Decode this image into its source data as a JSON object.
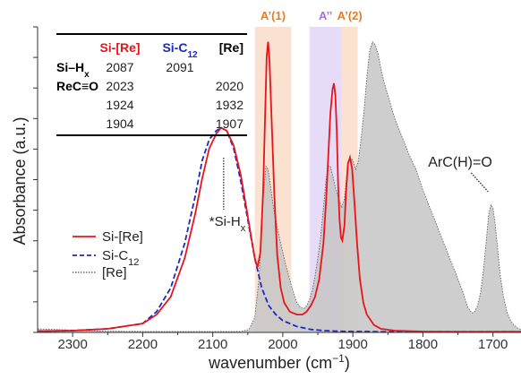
{
  "chart_data": {
    "type": "line",
    "xlabel": "wavenumber (cm",
    "xlabel_sup": "−1",
    "xlabel_close": ")",
    "ylabel": "Absorbance (a.u.)",
    "xlim": [
      2350,
      1660
    ],
    "ylim": [
      0,
      1
    ],
    "x_ticks": [
      2300,
      2200,
      2100,
      2000,
      1900,
      1800,
      1700
    ],
    "y_ticks_count": 11,
    "x_reversed": true,
    "bands": [
      {
        "label": "A’(1)",
        "from": 2040,
        "to": 1988,
        "color": "#F8D7C0"
      },
      {
        "label": "A’’",
        "from": 1962,
        "to": 1916,
        "color": "#DDD0F5"
      },
      {
        "label": "A’(2)",
        "from": 1916,
        "to": 1893,
        "color": "#F8D7C0"
      }
    ],
    "band_label_color_A1": "#E97A22",
    "band_label_color_A2": "#A66EE8",
    "annotations": [
      {
        "text": "ArC(H)=O",
        "x": 1703
      },
      {
        "text": "*Si-H",
        "sub": "x",
        "x": 2087
      }
    ],
    "series": [
      {
        "name": "Si-[Re]",
        "color": "#E8141C",
        "style": "solid",
        "x": [
          2350,
          2300,
          2250,
          2200,
          2180,
          2160,
          2140,
          2125,
          2115,
          2105,
          2095,
          2088,
          2080,
          2070,
          2060,
          2052,
          2045,
          2040,
          2036,
          2032,
          2028,
          2025,
          2023,
          2021,
          2019,
          2016,
          2012,
          2008,
          2003,
          1998,
          1990,
          1980,
          1972,
          1966,
          1960,
          1954,
          1948,
          1942,
          1938,
          1935,
          1932,
          1929,
          1927,
          1925,
          1923,
          1921,
          1919,
          1917,
          1915,
          1912,
          1910,
          1907,
          1904,
          1901,
          1898,
          1894,
          1890,
          1885,
          1880,
          1870,
          1860,
          1840,
          1800,
          1750,
          1700,
          1660
        ],
        "y": [
          0.004,
          0.006,
          0.012,
          0.03,
          0.06,
          0.12,
          0.25,
          0.4,
          0.52,
          0.62,
          0.67,
          0.69,
          0.68,
          0.63,
          0.53,
          0.42,
          0.32,
          0.25,
          0.22,
          0.27,
          0.48,
          0.75,
          0.93,
          0.98,
          0.92,
          0.72,
          0.46,
          0.26,
          0.15,
          0.1,
          0.07,
          0.06,
          0.06,
          0.07,
          0.09,
          0.12,
          0.18,
          0.3,
          0.45,
          0.6,
          0.74,
          0.82,
          0.84,
          0.8,
          0.68,
          0.5,
          0.38,
          0.32,
          0.31,
          0.36,
          0.46,
          0.57,
          0.59,
          0.55,
          0.45,
          0.3,
          0.18,
          0.1,
          0.06,
          0.025,
          0.012,
          0.006,
          0.003,
          0.002,
          0.002,
          0.002
        ]
      },
      {
        "name": "Si-C",
        "sub": "12",
        "color": "#1C28C8",
        "style": "dashed",
        "x": [
          2350,
          2300,
          2250,
          2200,
          2180,
          2160,
          2140,
          2125,
          2115,
          2105,
          2095,
          2088,
          2080,
          2070,
          2060,
          2050,
          2040,
          2030,
          2020,
          2010,
          2000,
          1990,
          1980,
          1970,
          1960,
          1950,
          1940,
          1920,
          1900,
          1880,
          1860,
          1800,
          1660
        ],
        "y": [
          0.004,
          0.006,
          0.012,
          0.03,
          0.07,
          0.15,
          0.3,
          0.46,
          0.58,
          0.65,
          0.68,
          0.69,
          0.68,
          0.62,
          0.51,
          0.38,
          0.25,
          0.15,
          0.09,
          0.06,
          0.04,
          0.03,
          0.02,
          0.015,
          0.01,
          0.008,
          0.006,
          0.004,
          0.003,
          0.003,
          0.002,
          0.002,
          0.002
        ]
      },
      {
        "name": "[Re]",
        "color": "#555555",
        "style": "dotted-filled",
        "fill": "#C5C5C5",
        "x": [
          2350,
          2300,
          2250,
          2200,
          2150,
          2100,
          2060,
          2048,
          2040,
          2034,
          2028,
          2024,
          2021,
          2018,
          2012,
          2004,
          1996,
          1988,
          1980,
          1975,
          1970,
          1966,
          1962,
          1958,
          1954,
          1950,
          1946,
          1942,
          1938,
          1935,
          1932,
          1928,
          1924,
          1920,
          1916,
          1912,
          1908,
          1904,
          1900,
          1896,
          1892,
          1888,
          1884,
          1880,
          1876,
          1872,
          1868,
          1864,
          1860,
          1855,
          1850,
          1845,
          1840,
          1830,
          1820,
          1810,
          1800,
          1790,
          1780,
          1770,
          1760,
          1750,
          1742,
          1736,
          1730,
          1726,
          1722,
          1718,
          1714,
          1710,
          1706,
          1703,
          1700,
          1697,
          1694,
          1690,
          1685,
          1680,
          1675,
          1670,
          1665,
          1660
        ],
        "y": [
          0.012,
          0.008,
          0.004,
          0.003,
          0.003,
          0.003,
          0.003,
          0.01,
          0.05,
          0.18,
          0.45,
          0.56,
          0.55,
          0.5,
          0.4,
          0.31,
          0.23,
          0.16,
          0.1,
          0.085,
          0.08,
          0.09,
          0.11,
          0.14,
          0.19,
          0.25,
          0.32,
          0.42,
          0.52,
          0.56,
          0.56,
          0.52,
          0.48,
          0.45,
          0.42,
          0.45,
          0.55,
          0.59,
          0.58,
          0.55,
          0.58,
          0.66,
          0.75,
          0.86,
          0.95,
          0.98,
          0.97,
          0.94,
          0.89,
          0.84,
          0.8,
          0.76,
          0.72,
          0.66,
          0.6,
          0.55,
          0.48,
          0.42,
          0.36,
          0.3,
          0.24,
          0.18,
          0.13,
          0.085,
          0.065,
          0.07,
          0.09,
          0.13,
          0.2,
          0.3,
          0.4,
          0.43,
          0.42,
          0.37,
          0.3,
          0.2,
          0.12,
          0.07,
          0.04,
          0.025,
          0.015,
          0.01
        ]
      }
    ],
    "table": {
      "headers": [
        "",
        "Si-[Re]",
        "Si-C",
        "[Re]"
      ],
      "header_sub": "12",
      "header_colors": [
        "#000000",
        "#E8141C",
        "#1C28C8",
        "#000000"
      ],
      "rows": [
        {
          "label": "Si–H",
          "label_sub": "x",
          "cells": [
            "2087",
            "2091",
            ""
          ]
        },
        {
          "label": "ReC≡O",
          "label_sub": "",
          "cells": [
            "2023",
            "",
            "2020"
          ]
        },
        {
          "label": "",
          "label_sub": "",
          "cells": [
            "1924",
            "",
            "1932"
          ]
        },
        {
          "label": "",
          "label_sub": "",
          "cells": [
            "1904",
            "",
            "1907"
          ]
        }
      ]
    }
  }
}
